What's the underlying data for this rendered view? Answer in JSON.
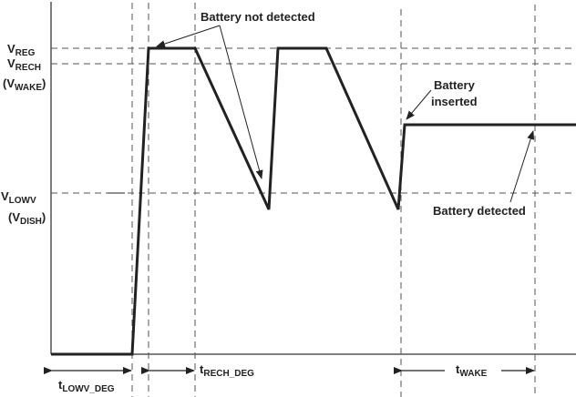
{
  "levels": {
    "vreg": {
      "main": "V",
      "sub": "REG"
    },
    "vrech": {
      "main": "V",
      "sub": "RECH"
    },
    "vwake": {
      "open": "(V",
      "sub": "WAKE",
      "close": ")"
    },
    "vlowv": {
      "main": "V",
      "sub": "LOWV"
    },
    "vdish": {
      "open": "(V",
      "sub": "DISH",
      "close": ")"
    }
  },
  "annotations": {
    "battery_not_detected": "Battery not detected",
    "battery_inserted_1": "Battery",
    "battery_inserted_2": "inserted",
    "battery_detected": "Battery detected"
  },
  "timings": {
    "tlowv_deg": {
      "main": "t",
      "sub": "LOWV_DEG"
    },
    "trech_deg": {
      "main": "t",
      "sub": "RECH_DEG"
    },
    "twake": {
      "main": "t",
      "sub": "WAKE"
    }
  }
}
